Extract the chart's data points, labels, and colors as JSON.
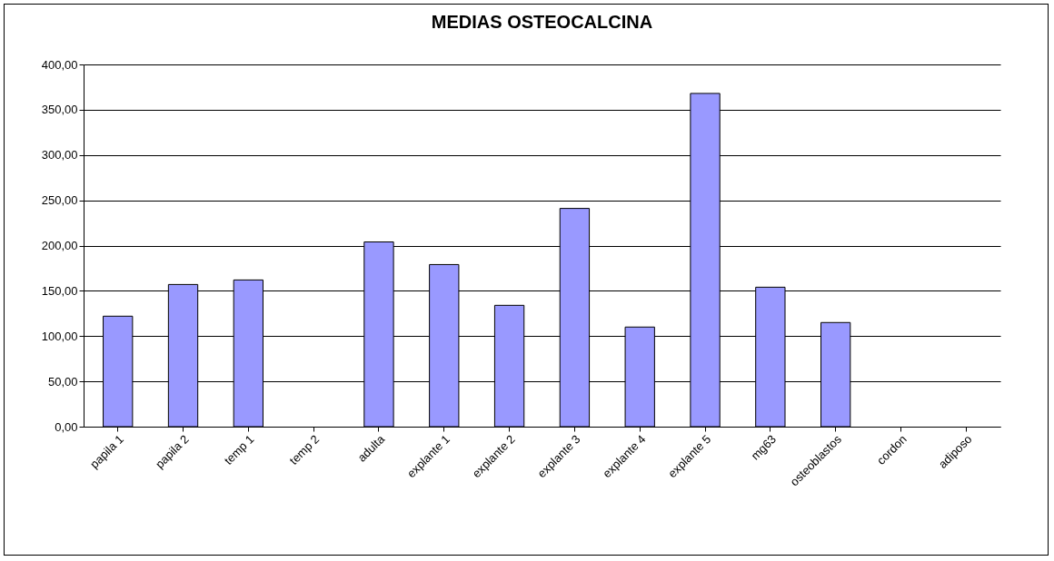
{
  "chart_data": {
    "type": "bar",
    "title": "MEDIAS OSTEOCALCINA",
    "categories": [
      "papila 1",
      "papila 2",
      "temp 1",
      "temp 2",
      "adulta",
      "explante 1",
      "explante 2",
      "explante 3",
      "explante 4",
      "explante 5",
      "mg63",
      "osteoblastos",
      "cordon",
      "adiposo"
    ],
    "values": [
      122,
      157,
      162,
      null,
      204,
      179,
      134,
      241,
      110,
      368,
      154,
      115,
      null,
      null
    ],
    "color": "#9999ff",
    "ylim": [
      0,
      400
    ],
    "yticks": [
      {
        "value": 0,
        "label": "0,00"
      },
      {
        "value": 50,
        "label": "50,00"
      },
      {
        "value": 100,
        "label": "100,00"
      },
      {
        "value": 150,
        "label": "150,00"
      },
      {
        "value": 200,
        "label": "200,00"
      },
      {
        "value": 250,
        "label": "250,00"
      },
      {
        "value": 300,
        "label": "300,00"
      },
      {
        "value": 350,
        "label": "350,00"
      },
      {
        "value": 400,
        "label": "400,00"
      }
    ],
    "grid": "y"
  }
}
